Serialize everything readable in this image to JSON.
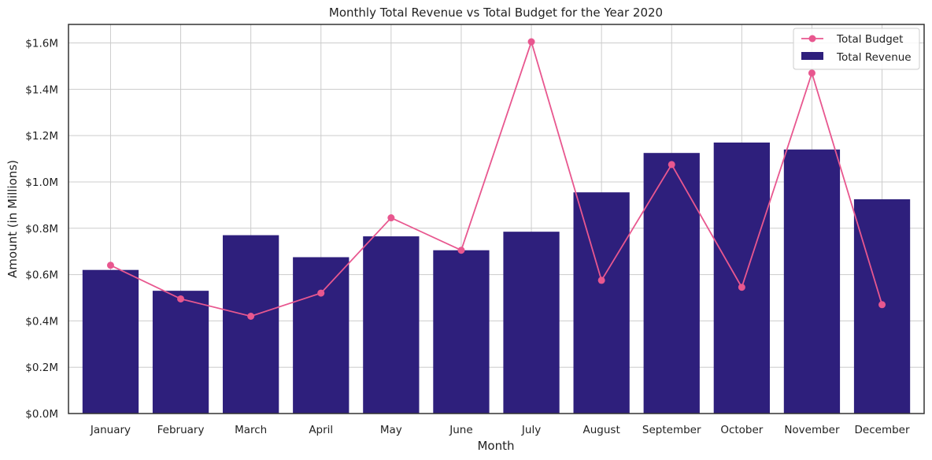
{
  "chart_data": {
    "type": "bar",
    "title": "Monthly Total Revenue vs Total Budget for the Year 2020",
    "xlabel": "Month",
    "ylabel": "Amount (in Millions)",
    "categories": [
      "January",
      "February",
      "March",
      "April",
      "May",
      "June",
      "July",
      "August",
      "September",
      "October",
      "November",
      "December"
    ],
    "series": [
      {
        "name": "Total Revenue",
        "kind": "bar",
        "color": "#2e1f7c",
        "values": [
          0.62,
          0.53,
          0.77,
          0.675,
          0.765,
          0.705,
          0.785,
          0.955,
          1.125,
          1.17,
          1.14,
          0.925
        ]
      },
      {
        "name": "Total Budget",
        "kind": "line",
        "color": "#e8578f",
        "values": [
          0.64,
          0.495,
          0.42,
          0.52,
          0.845,
          0.705,
          1.605,
          0.575,
          1.075,
          0.545,
          1.47,
          0.47
        ]
      }
    ],
    "ylim": [
      0,
      1.68
    ],
    "yticks": [
      0,
      0.2,
      0.4,
      0.6,
      0.8,
      1.0,
      1.2,
      1.4,
      1.6
    ],
    "ytick_labels": [
      "$0.0M",
      "$0.2M",
      "$0.4M",
      "$0.6M",
      "$0.8M",
      "$1.0M",
      "$1.2M",
      "$1.4M",
      "$1.6M"
    ],
    "grid": true,
    "legend_position": "top-right"
  }
}
